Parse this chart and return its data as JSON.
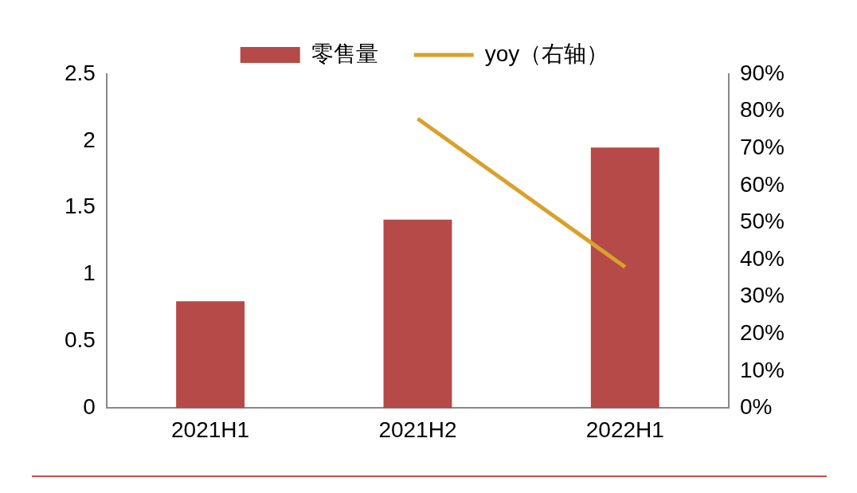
{
  "chart_data": {
    "type": "bar",
    "categories": [
      "2021H1",
      "2021H2",
      "2022H1"
    ],
    "series": [
      {
        "name": "零售量",
        "color": "#b54a48",
        "values": [
          0.8,
          1.41,
          1.95
        ]
      },
      {
        "name": "yoy（右轴）",
        "type": "line",
        "axis": "y2",
        "color": "#d9a12b",
        "values": [
          null,
          78,
          38
        ]
      }
    ],
    "ylim": [
      0,
      2.5
    ],
    "yticks": [
      0,
      0.5,
      1,
      1.5,
      2,
      2.5
    ],
    "y2lim": [
      0,
      90
    ],
    "y2ticks": [
      {
        "value": 0,
        "label": "0%"
      },
      {
        "value": 10,
        "label": "10%"
      },
      {
        "value": 20,
        "label": "20%"
      },
      {
        "value": 30,
        "label": "30%"
      },
      {
        "value": 40,
        "label": "40%"
      },
      {
        "value": 50,
        "label": "50%"
      },
      {
        "value": 60,
        "label": "60%"
      },
      {
        "value": 70,
        "label": "70%"
      },
      {
        "value": 80,
        "label": "80%"
      },
      {
        "value": 90,
        "label": "90%"
      }
    ],
    "grid": false,
    "legend": "top",
    "marker": "none"
  }
}
